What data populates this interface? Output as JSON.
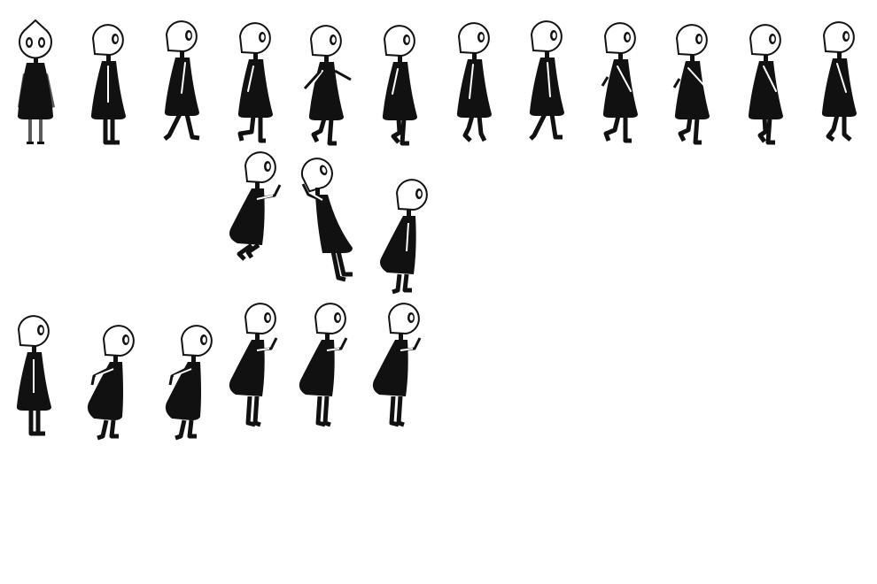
{
  "sprite_sheet": {
    "background": "#ffffff",
    "ink": "#111111",
    "highlight": "#ffffff",
    "rows": [
      {
        "name": "walk-cycle",
        "frames": [
          {
            "pose": "idle-front"
          },
          {
            "pose": "walk"
          },
          {
            "pose": "walk"
          },
          {
            "pose": "walk"
          },
          {
            "pose": "walk"
          },
          {
            "pose": "walk"
          },
          {
            "pose": "walk"
          },
          {
            "pose": "walk"
          },
          {
            "pose": "walk"
          },
          {
            "pose": "walk"
          },
          {
            "pose": "walk"
          },
          {
            "pose": "walk"
          }
        ]
      },
      {
        "name": "jump",
        "frames": [
          {
            "pose": "jump-tuck"
          },
          {
            "pose": "jump-fall"
          },
          {
            "pose": "land"
          }
        ]
      },
      {
        "name": "push",
        "frames": [
          {
            "pose": "stand"
          },
          {
            "pose": "push-crouch"
          },
          {
            "pose": "push-crouch"
          },
          {
            "pose": "push-reach"
          },
          {
            "pose": "push-reach"
          },
          {
            "pose": "push-reach"
          }
        ]
      }
    ]
  }
}
